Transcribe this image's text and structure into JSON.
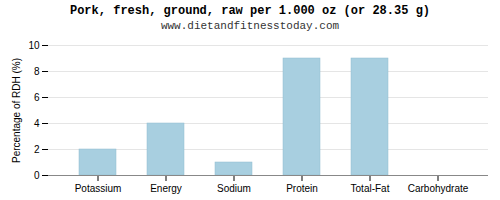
{
  "chart_data": {
    "type": "bar",
    "title": "Pork, fresh, ground, raw per 1.000 oz (or 28.35 g)",
    "subtitle": "www.dietandfitnesstoday.com",
    "categories": [
      "Potassium",
      "Energy",
      "Sodium",
      "Protein",
      "Total-Fat",
      "Carbohydrate"
    ],
    "values": [
      2.0,
      4.0,
      1.0,
      9.0,
      9.0,
      0.0
    ],
    "color": "#a8cfe0",
    "ylabel": "Percentage of RDH (%)",
    "ylim": [
      0,
      10
    ],
    "yticks": [
      0,
      2,
      4,
      6,
      8,
      10
    ],
    "grid": true
  }
}
